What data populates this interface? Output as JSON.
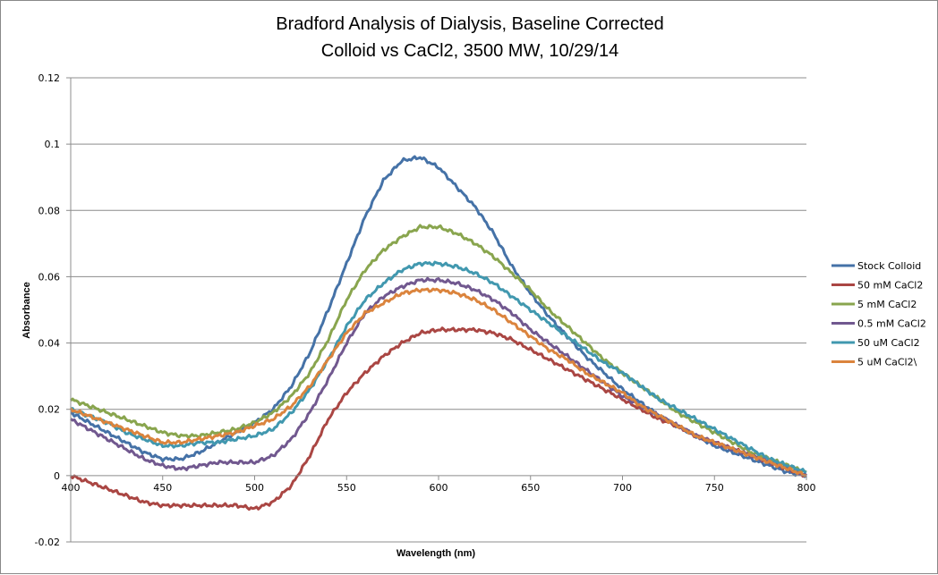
{
  "chart_data": {
    "type": "line",
    "title": [
      "Bradford Analysis of Dialysis, Baseline Corrected",
      "Colloid vs CaCl2, 3500 MW, 10/29/14"
    ],
    "xlabel": "Wavelength (nm)",
    "ylabel": "Absorbance",
    "xlim": [
      400,
      800
    ],
    "ylim": [
      -0.02,
      0.12
    ],
    "xticks": [
      "400",
      "450",
      "500",
      "550",
      "600",
      "650",
      "700",
      "750",
      "800"
    ],
    "xtick_values": [
      400,
      450,
      500,
      550,
      600,
      650,
      700,
      750,
      800
    ],
    "yticks": [
      "-0.02",
      "0",
      "0.02",
      "0.04",
      "0.06",
      "0.08",
      "0.1",
      "0.12"
    ],
    "ytick_values": [
      -0.02,
      0,
      0.02,
      0.04,
      0.06,
      0.08,
      0.1,
      0.12
    ],
    "grid": "horizontal",
    "legend_position": "right",
    "x": [
      400,
      410,
      420,
      430,
      440,
      450,
      460,
      470,
      480,
      490,
      500,
      510,
      520,
      530,
      540,
      550,
      560,
      570,
      580,
      590,
      600,
      610,
      620,
      630,
      640,
      650,
      660,
      670,
      680,
      690,
      700,
      710,
      720,
      730,
      740,
      750,
      760,
      770,
      780,
      790,
      800
    ],
    "series": [
      {
        "name": "Stock Colloid",
        "color": "#4572a7",
        "values": [
          0.019,
          0.016,
          0.013,
          0.01,
          0.007,
          0.005,
          0.005,
          0.007,
          0.01,
          0.013,
          0.016,
          0.02,
          0.027,
          0.037,
          0.05,
          0.064,
          0.078,
          0.089,
          0.095,
          0.096,
          0.093,
          0.087,
          0.081,
          0.073,
          0.063,
          0.055,
          0.048,
          0.042,
          0.036,
          0.031,
          0.026,
          0.022,
          0.018,
          0.015,
          0.012,
          0.009,
          0.007,
          0.005,
          0.003,
          0.001,
          0.0
        ]
      },
      {
        "name": "50 mM CaCl2",
        "color": "#aa4643",
        "values": [
          0.0,
          -0.002,
          -0.004,
          -0.006,
          -0.008,
          -0.009,
          -0.009,
          -0.009,
          -0.009,
          -0.009,
          -0.01,
          -0.008,
          -0.003,
          0.006,
          0.017,
          0.025,
          0.031,
          0.036,
          0.04,
          0.043,
          0.044,
          0.044,
          0.044,
          0.043,
          0.041,
          0.038,
          0.035,
          0.032,
          0.029,
          0.026,
          0.023,
          0.02,
          0.017,
          0.015,
          0.012,
          0.01,
          0.008,
          0.006,
          0.004,
          0.002,
          0.0
        ]
      },
      {
        "name": "5 mM CaCl2",
        "color": "#89a54e",
        "values": [
          0.023,
          0.021,
          0.019,
          0.017,
          0.015,
          0.013,
          0.012,
          0.012,
          0.013,
          0.014,
          0.016,
          0.019,
          0.024,
          0.031,
          0.041,
          0.053,
          0.062,
          0.068,
          0.072,
          0.075,
          0.075,
          0.073,
          0.07,
          0.066,
          0.061,
          0.056,
          0.05,
          0.045,
          0.04,
          0.035,
          0.031,
          0.027,
          0.023,
          0.019,
          0.016,
          0.013,
          0.01,
          0.007,
          0.005,
          0.003,
          0.001
        ]
      },
      {
        "name": "0.5 mM CaCl2",
        "color": "#71588f",
        "values": [
          0.017,
          0.014,
          0.011,
          0.008,
          0.005,
          0.003,
          0.002,
          0.003,
          0.004,
          0.004,
          0.004,
          0.006,
          0.011,
          0.019,
          0.029,
          0.04,
          0.049,
          0.054,
          0.057,
          0.059,
          0.059,
          0.058,
          0.056,
          0.053,
          0.049,
          0.044,
          0.04,
          0.036,
          0.032,
          0.028,
          0.024,
          0.021,
          0.018,
          0.015,
          0.012,
          0.01,
          0.008,
          0.006,
          0.004,
          0.002,
          0.0
        ]
      },
      {
        "name": "50 uM CaCl2",
        "color": "#4198af",
        "values": [
          0.02,
          0.018,
          0.016,
          0.013,
          0.011,
          0.009,
          0.009,
          0.01,
          0.01,
          0.011,
          0.012,
          0.014,
          0.019,
          0.026,
          0.035,
          0.045,
          0.053,
          0.058,
          0.062,
          0.064,
          0.064,
          0.063,
          0.061,
          0.058,
          0.054,
          0.05,
          0.046,
          0.042,
          0.038,
          0.034,
          0.031,
          0.027,
          0.023,
          0.02,
          0.017,
          0.014,
          0.011,
          0.008,
          0.005,
          0.003,
          0.001
        ]
      },
      {
        "name": "5 uM CaCl2\\",
        "color": "#db843d",
        "values": [
          0.02,
          0.018,
          0.016,
          0.014,
          0.012,
          0.01,
          0.01,
          0.011,
          0.012,
          0.013,
          0.015,
          0.017,
          0.021,
          0.027,
          0.035,
          0.043,
          0.049,
          0.052,
          0.055,
          0.056,
          0.056,
          0.055,
          0.053,
          0.05,
          0.046,
          0.042,
          0.038,
          0.035,
          0.031,
          0.028,
          0.025,
          0.021,
          0.018,
          0.015,
          0.012,
          0.01,
          0.008,
          0.006,
          0.004,
          0.002,
          0.0
        ]
      }
    ]
  }
}
